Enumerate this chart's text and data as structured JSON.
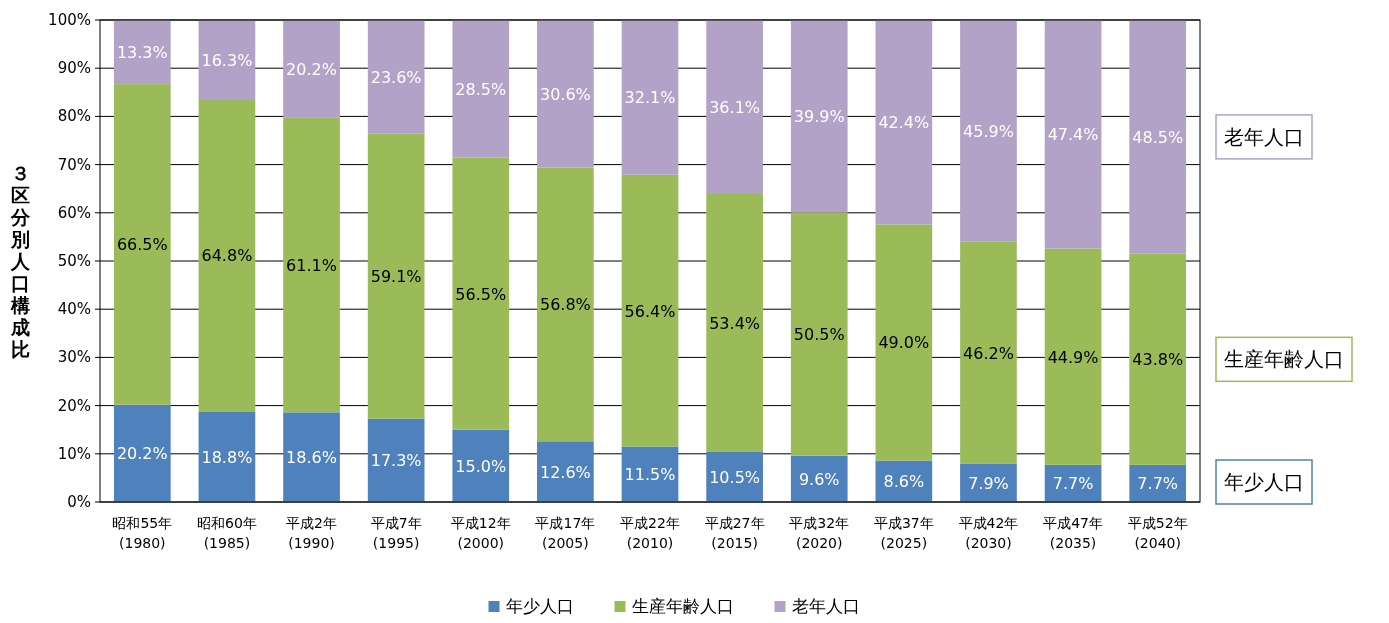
{
  "chart_data": {
    "type": "bar",
    "stacked": true,
    "ylabel": "３区分別人口構成比",
    "categories": [
      "昭和55年\n(1980)",
      "昭和60年\n(1985)",
      "平成2年\n(1990)",
      "平成7年\n(1995)",
      "平成12年\n(2000)",
      "平成17年\n(2005)",
      "平成22年\n(2010)",
      "平成27年\n(2015)",
      "平成32年\n(2020)",
      "平成37年\n(2025)",
      "平成42年\n(2030)",
      "平成47年\n(2035)",
      "平成52年\n(2040)"
    ],
    "series": [
      {
        "name": "年少人口",
        "color": "#4f81bd",
        "values": [
          20.2,
          18.8,
          18.6,
          17.3,
          15.0,
          12.6,
          11.5,
          10.5,
          9.6,
          8.6,
          7.9,
          7.7,
          7.7
        ],
        "value_labels": [
          "20.2%",
          "18.8%",
          "18.6%",
          "17.3%",
          "15.0%",
          "12.6%",
          "11.5%",
          "10.5%",
          "9.6%",
          "8.6%",
          "7.9%",
          "7.7%",
          "7.7%"
        ]
      },
      {
        "name": "生産年齢人口",
        "color": "#9bbb59",
        "values": [
          66.5,
          64.8,
          61.1,
          59.1,
          56.5,
          56.8,
          56.4,
          53.4,
          50.5,
          49.0,
          46.2,
          44.9,
          43.8
        ],
        "value_labels": [
          "66.5%",
          "64.8%",
          "61.1%",
          "59.1%",
          "56.5%",
          "56.8%",
          "56.4%",
          "53.4%",
          "50.5%",
          "49.0%",
          "46.2%",
          "44.9%",
          "43.8%"
        ]
      },
      {
        "name": "老年人口",
        "color": "#b3a2c7",
        "values": [
          13.3,
          16.3,
          20.2,
          23.6,
          28.5,
          30.6,
          32.1,
          36.1,
          39.9,
          42.4,
          45.9,
          47.4,
          48.5
        ],
        "value_labels": [
          "13.3%",
          "16.3%",
          "20.2%",
          "23.6%",
          "28.5%",
          "30.6%",
          "32.1%",
          "36.1%",
          "39.9%",
          "42.4%",
          "45.9%",
          "47.4%",
          "48.5%"
        ]
      }
    ],
    "ylim": [
      0,
      100
    ],
    "yticks": [
      {
        "value": 0,
        "label": "0%"
      },
      {
        "value": 10,
        "label": "10%"
      },
      {
        "value": 20,
        "label": "20%"
      },
      {
        "value": 30,
        "label": "30%"
      },
      {
        "value": 40,
        "label": "40%"
      },
      {
        "value": 50,
        "label": "50%"
      },
      {
        "value": 60,
        "label": "60%"
      },
      {
        "value": 70,
        "label": "70%"
      },
      {
        "value": 80,
        "label": "80%"
      },
      {
        "value": 90,
        "label": "90%"
      },
      {
        "value": 100,
        "label": "100%"
      }
    ],
    "grid": "y",
    "legend": "bottom",
    "annotations": [
      "老年人口",
      "生産年齢人口",
      "年少人口"
    ]
  }
}
